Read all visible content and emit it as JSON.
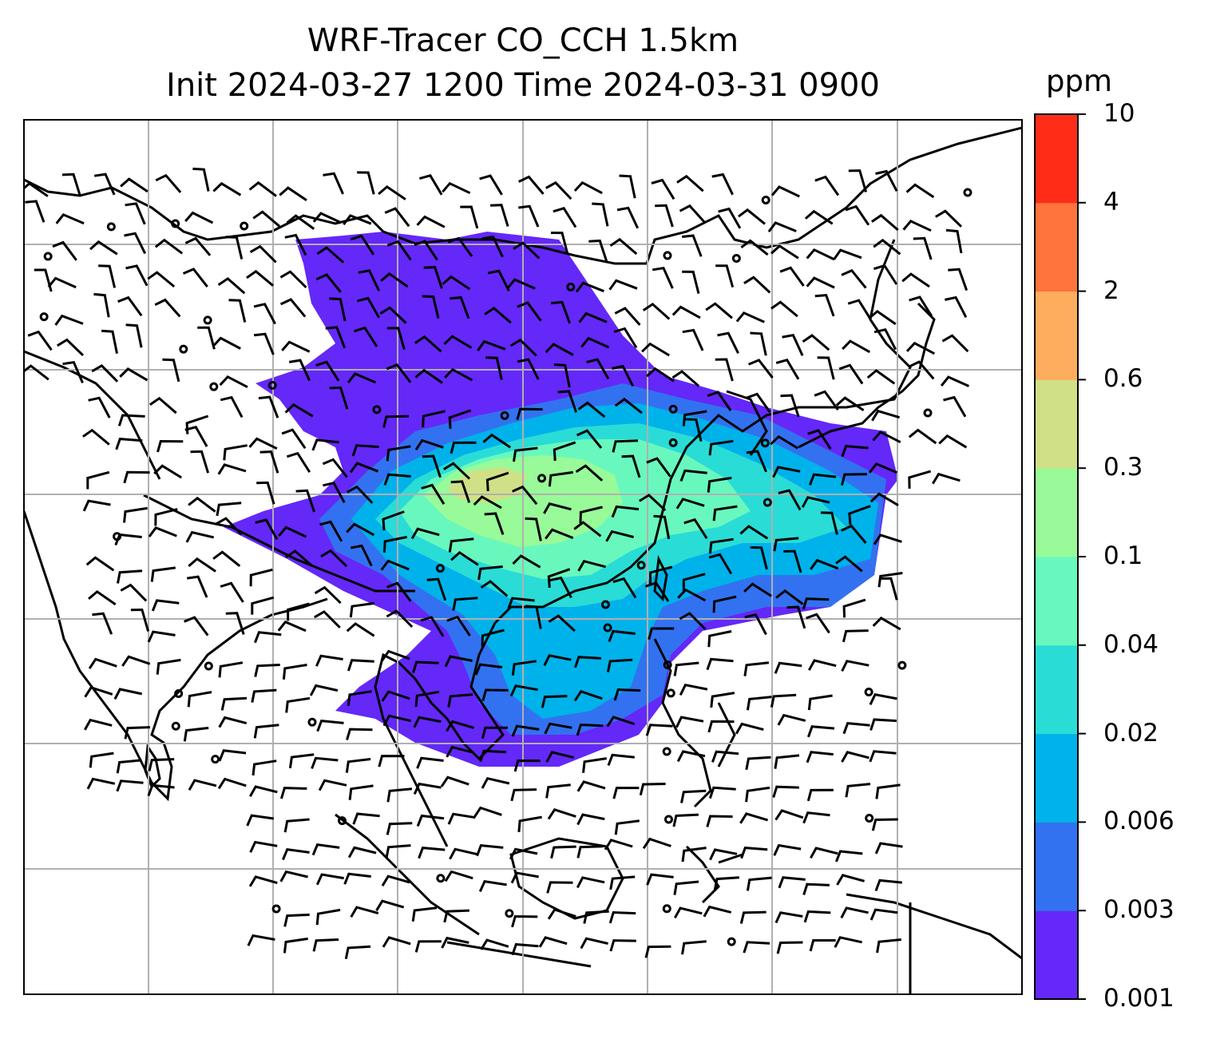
{
  "title": {
    "line1": "WRF-Tracer CO_CCH 1.5km",
    "line2": "Init 2024-03-27 1200 Time 2024-03-31 0900"
  },
  "colorbar": {
    "unit": "ppm",
    "ticks": [
      "0.001",
      "0.003",
      "0.006",
      "0.02",
      "0.04",
      "0.1",
      "0.3",
      "0.6",
      "2",
      "4",
      "10"
    ],
    "colors": [
      "#6428f8",
      "#3272f0",
      "#00b2ea",
      "#2adcd6",
      "#68f8be",
      "#98fa98",
      "#d0e087",
      "#feac5e",
      "#ff733c",
      "#ff2c17"
    ]
  },
  "map": {
    "gridlines": "on",
    "grid_color": "#b0b0b0",
    "coastline_color": "#000000",
    "features": [
      "coastlines",
      "wind-barbs",
      "co-tracer-concentration"
    ]
  }
}
